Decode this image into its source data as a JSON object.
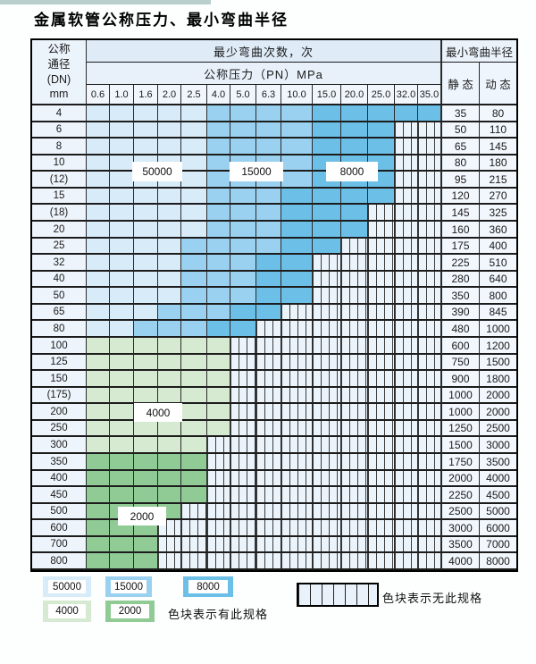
{
  "title": "金属软管公称压力、最小弯曲半径",
  "header": {
    "dn_label_lines": [
      "公称",
      "通径",
      "(DN)",
      "mm"
    ],
    "bend_cycles_label": "最少弯曲次数，次",
    "pressure_label": "公称压力（PN）MPa",
    "min_radius_label": "最小弯曲半径",
    "static_label": "静 态",
    "dynamic_label": "动 态",
    "pressure_columns": [
      "0.6",
      "1.0",
      "1.6",
      "2.0",
      "2.5",
      "4.0",
      "5.0",
      "6.3",
      "10.0",
      "15.0",
      "20.0",
      "25.0",
      "32.0",
      "35.0"
    ]
  },
  "zone_labels": [
    {
      "id": "z50000",
      "value": "50000"
    },
    {
      "id": "z15000",
      "value": "15000"
    },
    {
      "id": "z8000",
      "value": "8000"
    },
    {
      "id": "z4000",
      "value": "4000"
    },
    {
      "id": "z2000",
      "value": "2000"
    }
  ],
  "rows": [
    {
      "dn": "4",
      "static": "35",
      "dynamic": "80",
      "spec": [
        [
          "50000",
          5
        ],
        [
          "15000",
          4
        ],
        [
          "8000",
          5
        ]
      ]
    },
    {
      "dn": "6",
      "static": "50",
      "dynamic": "110",
      "spec": [
        [
          "50000",
          5
        ],
        [
          "15000",
          4
        ],
        [
          "8000",
          3
        ]
      ]
    },
    {
      "dn": "8",
      "static": "65",
      "dynamic": "145",
      "spec": [
        [
          "50000",
          5
        ],
        [
          "15000",
          4
        ],
        [
          "8000",
          3
        ]
      ]
    },
    {
      "dn": "10",
      "static": "80",
      "dynamic": "180",
      "spec": [
        [
          "50000",
          5
        ],
        [
          "15000",
          4
        ],
        [
          "8000",
          3
        ]
      ]
    },
    {
      "dn": "(12)",
      "static": "95",
      "dynamic": "215",
      "spec": [
        [
          "50000",
          5
        ],
        [
          "15000",
          4
        ],
        [
          "8000",
          3
        ]
      ]
    },
    {
      "dn": "15",
      "static": "120",
      "dynamic": "270",
      "spec": [
        [
          "50000",
          5
        ],
        [
          "15000",
          3
        ],
        [
          "8000",
          4
        ]
      ]
    },
    {
      "dn": "(18)",
      "static": "145",
      "dynamic": "325",
      "spec": [
        [
          "50000",
          5
        ],
        [
          "15000",
          3
        ],
        [
          "8000",
          3
        ]
      ]
    },
    {
      "dn": "20",
      "static": "160",
      "dynamic": "360",
      "spec": [
        [
          "50000",
          5
        ],
        [
          "15000",
          3
        ],
        [
          "8000",
          3
        ]
      ]
    },
    {
      "dn": "25",
      "static": "175",
      "dynamic": "400",
      "spec": [
        [
          "50000",
          4
        ],
        [
          "15000",
          4
        ],
        [
          "8000",
          2
        ]
      ]
    },
    {
      "dn": "32",
      "static": "225",
      "dynamic": "510",
      "spec": [
        [
          "50000",
          4
        ],
        [
          "15000",
          3
        ],
        [
          "8000",
          2
        ]
      ]
    },
    {
      "dn": "40",
      "static": "280",
      "dynamic": "640",
      "spec": [
        [
          "50000",
          4
        ],
        [
          "15000",
          3
        ],
        [
          "8000",
          2
        ]
      ]
    },
    {
      "dn": "50",
      "static": "350",
      "dynamic": "800",
      "spec": [
        [
          "50000",
          4
        ],
        [
          "15000",
          3
        ],
        [
          "8000",
          2
        ]
      ]
    },
    {
      "dn": "65",
      "static": "390",
      "dynamic": "845",
      "spec": [
        [
          "50000",
          3
        ],
        [
          "15000",
          3
        ],
        [
          "8000",
          2
        ]
      ]
    },
    {
      "dn": "80",
      "static": "480",
      "dynamic": "1000",
      "spec": [
        [
          "50000",
          2
        ],
        [
          "15000",
          3
        ],
        [
          "8000",
          2
        ]
      ]
    },
    {
      "dn": "100",
      "static": "600",
      "dynamic": "1200",
      "spec": [
        [
          "4000",
          6
        ]
      ]
    },
    {
      "dn": "125",
      "static": "750",
      "dynamic": "1500",
      "spec": [
        [
          "4000",
          6
        ]
      ]
    },
    {
      "dn": "150",
      "static": "900",
      "dynamic": "1800",
      "spec": [
        [
          "4000",
          6
        ]
      ]
    },
    {
      "dn": "(175)",
      "static": "1000",
      "dynamic": "2000",
      "spec": [
        [
          "4000",
          6
        ]
      ]
    },
    {
      "dn": "200",
      "static": "1000",
      "dynamic": "2000",
      "spec": [
        [
          "4000",
          6
        ]
      ]
    },
    {
      "dn": "250",
      "static": "1250",
      "dynamic": "2500",
      "spec": [
        [
          "4000",
          6
        ]
      ]
    },
    {
      "dn": "300",
      "static": "1500",
      "dynamic": "3000",
      "spec": [
        [
          "4000",
          5
        ]
      ]
    },
    {
      "dn": "350",
      "static": "1750",
      "dynamic": "3500",
      "spec": [
        [
          "2000",
          5
        ]
      ]
    },
    {
      "dn": "400",
      "static": "2000",
      "dynamic": "4000",
      "spec": [
        [
          "2000",
          5
        ]
      ]
    },
    {
      "dn": "450",
      "static": "2250",
      "dynamic": "4500",
      "spec": [
        [
          "2000",
          5
        ]
      ]
    },
    {
      "dn": "500",
      "static": "2500",
      "dynamic": "5000",
      "spec": [
        [
          "2000",
          4
        ]
      ]
    },
    {
      "dn": "600",
      "static": "3000",
      "dynamic": "6000",
      "spec": [
        [
          "2000",
          3
        ]
      ]
    },
    {
      "dn": "700",
      "static": "3500",
      "dynamic": "7000",
      "spec": [
        [
          "2000",
          3
        ]
      ]
    },
    {
      "dn": "800",
      "static": "4000",
      "dynamic": "8000",
      "spec": [
        [
          "2000",
          3
        ]
      ]
    }
  ],
  "legend": {
    "items": [
      {
        "value": "50000",
        "color_key": "blue_light"
      },
      {
        "value": "15000",
        "color_key": "blue_mid"
      },
      {
        "value": "8000",
        "color_key": "blue_dark"
      },
      {
        "value": "4000",
        "color_key": "green_light"
      },
      {
        "value": "2000",
        "color_key": "green_dark"
      }
    ],
    "has_spec_text": "色块表示有此规格",
    "no_spec_text": "色块表示无此规格"
  },
  "colors": {
    "blue_light": "#d8ebf8",
    "blue_mid": "#9bd1f0",
    "blue_dark": "#6cc0e8",
    "green_light": "#d6e9d1",
    "green_dark": "#90cb96",
    "striped_bg": "#ecf4fb"
  }
}
